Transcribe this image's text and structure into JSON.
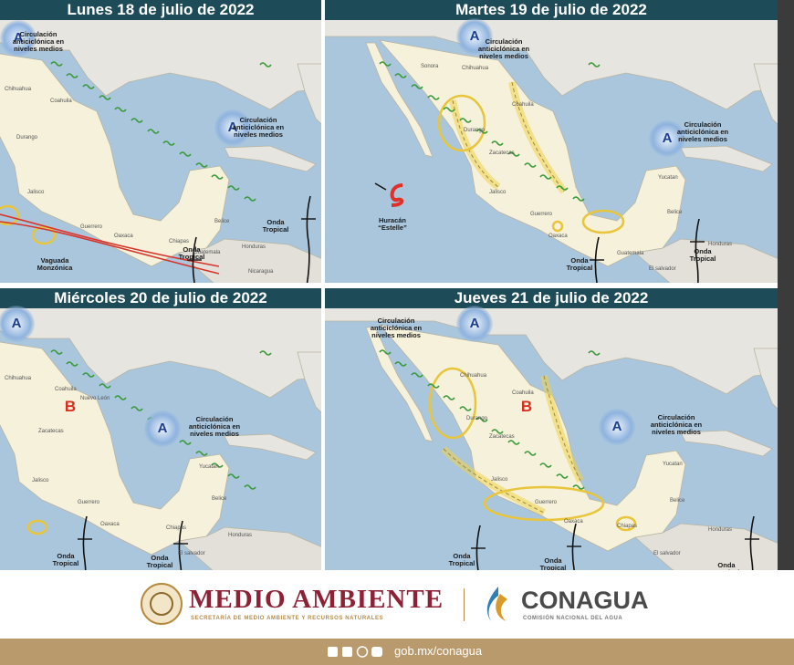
{
  "panels": [
    {
      "title": "Lunes 18 de julio de 2022",
      "centers": [
        "A",
        "A"
      ],
      "labels": [
        "Circulación anticiclónica en niveles medios",
        "Circulación anticiclónica en niveles medios",
        "Vaguada Monzónica",
        "Onda Tropical",
        "Onda Tropical"
      ],
      "places": [
        "Chihuahua",
        "Coahuila",
        "Durango",
        "Jalisco",
        "Guerrero",
        "Oaxaca",
        "Chiapas",
        "Belice",
        "Honduras",
        "Guatemala",
        "Nicaragua"
      ]
    },
    {
      "title": "Martes 19 de julio de 2022",
      "centers": [
        "A",
        "A"
      ],
      "labels": [
        "Circulación anticiclónica en niveles medios",
        "Circulación anticiclónica en niveles medios",
        "Huracán “Estelle”",
        "Onda Tropical",
        "Onda Tropical"
      ],
      "places": [
        "Sonora",
        "Chihuahua",
        "Coahuila",
        "Durango",
        "Zacatecas",
        "Jalisco",
        "Guerrero",
        "Oaxaca",
        "Yucatan",
        "Belice",
        "Guatemala",
        "Honduras",
        "El salvador"
      ]
    },
    {
      "title": "Miércoles 20 de julio de 2022",
      "centers": [
        "A",
        "B",
        "A"
      ],
      "labels": [
        "Circulación anticiclónica en niveles medios",
        "Onda Tropical",
        "Onda Tropical"
      ],
      "places": [
        "Chihuahua",
        "Coahuila",
        "Nuevo León",
        "Zacatecas",
        "Jalisco",
        "Guerrero",
        "Oaxaca",
        "Yucatan",
        "Belice",
        "Chiapas",
        "El salvador",
        "Honduras"
      ]
    },
    {
      "title": "Jueves 21 de julio de 2022",
      "centers": [
        "A",
        "B",
        "A"
      ],
      "labels": [
        "Circulación anticiclónica en niveles medios",
        "Circulación anticiclónica en niveles medios",
        "Onda Tropical",
        "Onda Tropical",
        "Onda Tropical"
      ],
      "places": [
        "Chihuahua",
        "Coahuila",
        "Durango",
        "Zacatecas",
        "Jalisco",
        "Guerrero",
        "Oaxaca",
        "Chiapas",
        "Yucatan",
        "Belice",
        "Honduras",
        "El salvador"
      ]
    }
  ],
  "footer": {
    "brand1": "MEDIO AMBIENTE",
    "brand1_sub": "SECRETARÍA DE MEDIO AMBIENTE Y RECURSOS NATURALES",
    "brand2": "CONAGUA",
    "brand2_sub": "COMISIÓN NACIONAL DEL AGUA",
    "url": "gob.mx/conagua"
  }
}
